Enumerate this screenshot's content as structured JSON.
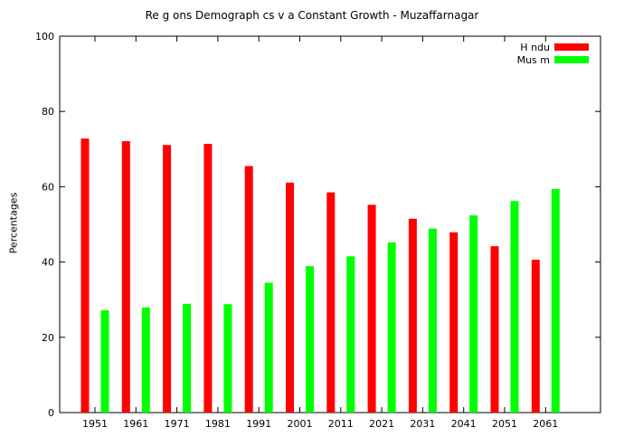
{
  "chart_data": {
    "type": "bar",
    "title": "Re g ons Demograph cs v a Constant Growth - Muzaffarnagar",
    "xlabel": "",
    "ylabel": "Percentages",
    "categories": [
      "1951",
      "1961",
      "1971",
      "1981",
      "1991",
      "2001",
      "2011",
      "2021",
      "2031",
      "2041",
      "2051",
      "2061"
    ],
    "series": [
      {
        "name": "H ndu",
        "color": "#ff0000",
        "values": [
          72.8,
          72.1,
          71.1,
          71.4,
          65.5,
          61.1,
          58.5,
          55.2,
          51.5,
          47.9,
          44.2,
          40.6
        ]
      },
      {
        "name": "Mus  m",
        "color": "#00ff00",
        "values": [
          27.2,
          27.9,
          28.9,
          28.8,
          34.5,
          38.9,
          41.5,
          45.2,
          48.9,
          52.4,
          56.2,
          59.4
        ]
      }
    ],
    "ylim": [
      0,
      100
    ],
    "yticks": [
      0,
      20,
      40,
      60,
      80,
      100
    ],
    "legend": "top-right",
    "grid": false
  }
}
